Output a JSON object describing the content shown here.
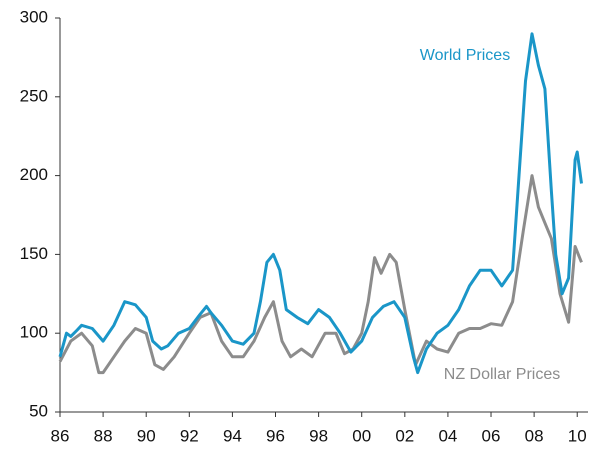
{
  "chart_data": {
    "type": "line",
    "xlim": [
      1986,
      2010.5
    ],
    "ylim": [
      50,
      300
    ],
    "xticks": [
      {
        "value": 1986,
        "label": "86"
      },
      {
        "value": 1988,
        "label": "88"
      },
      {
        "value": 1990,
        "label": "90"
      },
      {
        "value": 1992,
        "label": "92"
      },
      {
        "value": 1994,
        "label": "94"
      },
      {
        "value": 1996,
        "label": "96"
      },
      {
        "value": 1998,
        "label": "98"
      },
      {
        "value": 2000,
        "label": "00"
      },
      {
        "value": 2002,
        "label": "02"
      },
      {
        "value": 2004,
        "label": "04"
      },
      {
        "value": 2006,
        "label": "06"
      },
      {
        "value": 2008,
        "label": "08"
      },
      {
        "value": 2010,
        "label": "10"
      }
    ],
    "yticks": [
      50,
      100,
      150,
      200,
      250,
      300
    ],
    "series": [
      {
        "name": "World Prices",
        "color": "#1a96c8",
        "x": [
          1986.0,
          1986.3,
          1986.5,
          1986.8,
          1987.0,
          1987.5,
          1988.0,
          1988.5,
          1989.0,
          1989.5,
          1990.0,
          1990.3,
          1990.7,
          1991.0,
          1991.5,
          1992.0,
          1992.5,
          1992.8,
          1993.0,
          1993.5,
          1994.0,
          1994.5,
          1995.0,
          1995.3,
          1995.6,
          1995.9,
          1996.2,
          1996.5,
          1997.0,
          1997.5,
          1998.0,
          1998.5,
          1999.0,
          1999.5,
          2000.0,
          2000.5,
          2001.0,
          2001.5,
          2002.0,
          2002.4,
          2002.6,
          2003.0,
          2003.5,
          2004.0,
          2004.5,
          2005.0,
          2005.5,
          2006.0,
          2006.5,
          2007.0,
          2007.3,
          2007.6,
          2007.9,
          2008.2,
          2008.5,
          2008.8,
          2009.0,
          2009.3,
          2009.6,
          2009.9,
          2010.0,
          2010.2
        ],
        "values": [
          85,
          100,
          98,
          102,
          105,
          103,
          95,
          105,
          120,
          118,
          110,
          95,
          90,
          92,
          100,
          103,
          112,
          117,
          113,
          105,
          95,
          93,
          100,
          120,
          145,
          150,
          140,
          115,
          110,
          106,
          115,
          110,
          100,
          88,
          95,
          110,
          117,
          120,
          110,
          85,
          75,
          90,
          100,
          105,
          115,
          130,
          140,
          140,
          130,
          140,
          200,
          260,
          290,
          270,
          255,
          190,
          150,
          125,
          135,
          210,
          215,
          195
        ]
      },
      {
        "name": "NZ Dollar Prices",
        "color": "#8c8c8c",
        "x": [
          1986.0,
          1986.5,
          1987.0,
          1987.5,
          1987.8,
          1988.0,
          1988.5,
          1989.0,
          1989.5,
          1990.0,
          1990.4,
          1990.8,
          1991.3,
          1992.0,
          1992.5,
          1993.0,
          1993.5,
          1994.0,
          1994.5,
          1995.0,
          1995.5,
          1995.9,
          1996.3,
          1996.7,
          1997.2,
          1997.7,
          1998.3,
          1998.8,
          1999.2,
          1999.6,
          2000.0,
          2000.3,
          2000.6,
          2000.9,
          2001.3,
          2001.6,
          2002.0,
          2002.5,
          2003.0,
          2003.5,
          2004.0,
          2004.5,
          2005.0,
          2005.5,
          2006.0,
          2006.5,
          2007.0,
          2007.5,
          2007.9,
          2008.2,
          2008.5,
          2008.8,
          2009.2,
          2009.6,
          2009.9,
          2010.2
        ],
        "values": [
          82,
          95,
          100,
          92,
          75,
          75,
          85,
          95,
          103,
          100,
          80,
          77,
          85,
          100,
          110,
          113,
          95,
          85,
          85,
          95,
          110,
          120,
          95,
          85,
          90,
          85,
          100,
          100,
          87,
          90,
          100,
          120,
          148,
          138,
          150,
          145,
          115,
          80,
          95,
          90,
          88,
          100,
          103,
          103,
          106,
          105,
          120,
          165,
          200,
          180,
          170,
          160,
          125,
          107,
          155,
          145
        ]
      }
    ]
  }
}
